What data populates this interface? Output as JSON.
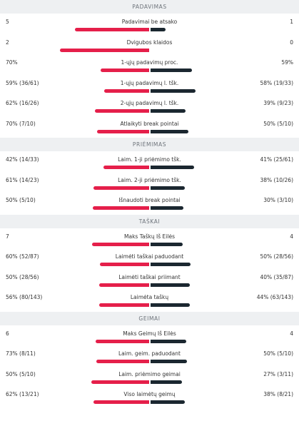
{
  "colors": {
    "player1": "#e51f4a",
    "player2": "#1b2730",
    "header_bg": "#eef0f2"
  },
  "sections": [
    {
      "title": "PADAVIMAS",
      "rows": [
        {
          "label": "Padavimai be atsako",
          "left": "5",
          "right": "1",
          "left_frac": 0.83,
          "right_frac": 0.17
        },
        {
          "label": "Dvigubos klaidos",
          "left": "2",
          "right": "0",
          "left_frac": 1.0,
          "right_frac": 0.0
        },
        {
          "label": "1-ųjų padavimų proc.",
          "left": "70%",
          "right": "59%",
          "left_frac": 0.54,
          "right_frac": 0.46
        },
        {
          "label": "1-ųjų padavimų l. tšk.",
          "left": "59% (36/61)",
          "right": "58% (19/33)",
          "left_frac": 0.5,
          "right_frac": 0.5
        },
        {
          "label": "2-ųjų padavimų l. tšk.",
          "left": "62% (16/26)",
          "right": "39% (9/23)",
          "left_frac": 0.61,
          "right_frac": 0.39
        },
        {
          "label": "Atlaikyti break pointai",
          "left": "70% (7/10)",
          "right": "50% (5/10)",
          "left_frac": 0.58,
          "right_frac": 0.42
        }
      ]
    },
    {
      "title": "PRIĖMIMAS",
      "rows": [
        {
          "label": "Laim. 1-ji priėmimo tšk.",
          "left": "42% (14/33)",
          "right": "41% (25/61)",
          "left_frac": 0.51,
          "right_frac": 0.49
        },
        {
          "label": "Laim. 2-ji priėmimo tšk.",
          "left": "61% (14/23)",
          "right": "38% (10/26)",
          "left_frac": 0.62,
          "right_frac": 0.38
        },
        {
          "label": "Išnaudoti break pointai",
          "left": "50% (5/10)",
          "right": "30% (3/10)",
          "left_frac": 0.63,
          "right_frac": 0.37
        }
      ]
    },
    {
      "title": "TAŠKAI",
      "rows": [
        {
          "label": "Maks Taškų Iš Eilės",
          "left": "7",
          "right": "4",
          "left_frac": 0.64,
          "right_frac": 0.36
        },
        {
          "label": "Laimėti taškai paduodant",
          "left": "60% (52/87)",
          "right": "50% (28/56)",
          "left_frac": 0.55,
          "right_frac": 0.45
        },
        {
          "label": "Laimėti taškai priimant",
          "left": "50% (28/56)",
          "right": "40% (35/87)",
          "left_frac": 0.56,
          "right_frac": 0.44
        },
        {
          "label": "Laimėta taškų",
          "left": "56% (80/143)",
          "right": "44% (63/143)",
          "left_frac": 0.56,
          "right_frac": 0.44
        }
      ]
    },
    {
      "title": "GEIMAI",
      "rows": [
        {
          "label": "Maks Geimų Iš Eilės",
          "left": "6",
          "right": "4",
          "left_frac": 0.6,
          "right_frac": 0.4
        },
        {
          "label": "Laim. geim. paduodant",
          "left": "73% (8/11)",
          "right": "50% (5/10)",
          "left_frac": 0.59,
          "right_frac": 0.41
        },
        {
          "label": "Laim. priėmimo geimai",
          "left": "50% (5/10)",
          "right": "27% (3/11)",
          "left_frac": 0.65,
          "right_frac": 0.35
        },
        {
          "label": "Viso laimėtų geimų",
          "left": "62% (13/21)",
          "right": "38% (8/21)",
          "left_frac": 0.62,
          "right_frac": 0.38
        }
      ]
    }
  ]
}
